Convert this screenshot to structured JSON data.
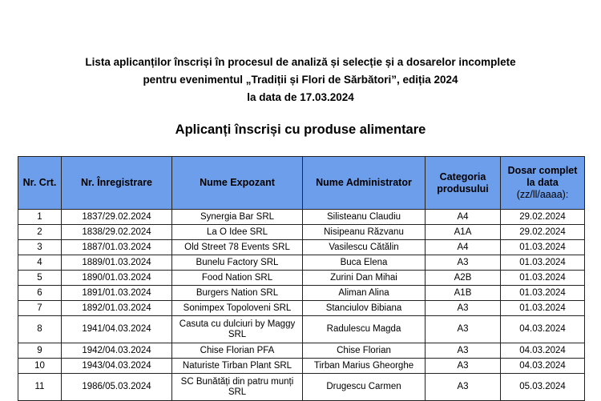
{
  "header": {
    "line1": "Lista aplicanților înscriși în procesul de analiză și selecție și a dosarelor incomplete",
    "line2": "pentru evenimentul „Tradiții și Flori de Sărbători”, ediția 2024",
    "line3": "la data de 17.03.2024",
    "subtitle": "Aplicanți înscriși cu produse alimentare"
  },
  "colors": {
    "header_bg": "#6d9eeb"
  },
  "table": {
    "columns": [
      "Nr. Crt.",
      "Nr. Înregistrare",
      "Nume Expozant",
      "Nume Administrator",
      "Categoria produsului",
      "Dosar complet la data",
      "(zz/ll/aaaa):"
    ],
    "rows": [
      [
        "1",
        "1837/29.02.2024",
        "Synergia Bar SRL",
        "Silisteanu Claudiu",
        "A4",
        "29.02.2024"
      ],
      [
        "2",
        "1838/29.02.2024",
        "La O Idee SRL",
        "Nisipeanu Răzvanu",
        "A1A",
        "29.02.2024"
      ],
      [
        "3",
        "1887/01.03.2024",
        "Old Street 78 Events SRL",
        "Vasilescu Cătălin",
        "A4",
        "01.03.2024"
      ],
      [
        "4",
        "1889/01.03.2024",
        "Bunelu Factory SRL",
        "Buca Elena",
        "A3",
        "01.03.2024"
      ],
      [
        "5",
        "1890/01.03.2024",
        "Food Nation SRL",
        "Zurini Dan Mihai",
        "A2B",
        "01.03.2024"
      ],
      [
        "6",
        "1891/01.03.2024",
        "Burgers Nation SRL",
        "Aliman Alina",
        "A1B",
        "01.03.2024"
      ],
      [
        "7",
        "1892/01.03.2024",
        "Sonimpex Topoloveni SRL",
        "Stanciulov Bibiana",
        "A3",
        "01.03.2024"
      ],
      [
        "8",
        "1941/04.03.2024",
        "Casuta cu dulciuri by Maggy SRL",
        "Radulescu Magda",
        "A3",
        "04.03.2024"
      ],
      [
        "9",
        "1942/04.03.2024",
        "Chise Florian PFA",
        "Chise Florian",
        "A3",
        "04.03.2024"
      ],
      [
        "10",
        "1943/04.03.2024",
        "Naturiste Tirban Plant SRL",
        "Tirban Marius Gheorghe",
        "A3",
        "04.03.2024"
      ],
      [
        "11",
        "1986/05.03.2024",
        "SC Bunătăți din patru munți SRL",
        "Drugescu Carmen",
        "A3",
        "05.03.2024"
      ]
    ]
  }
}
